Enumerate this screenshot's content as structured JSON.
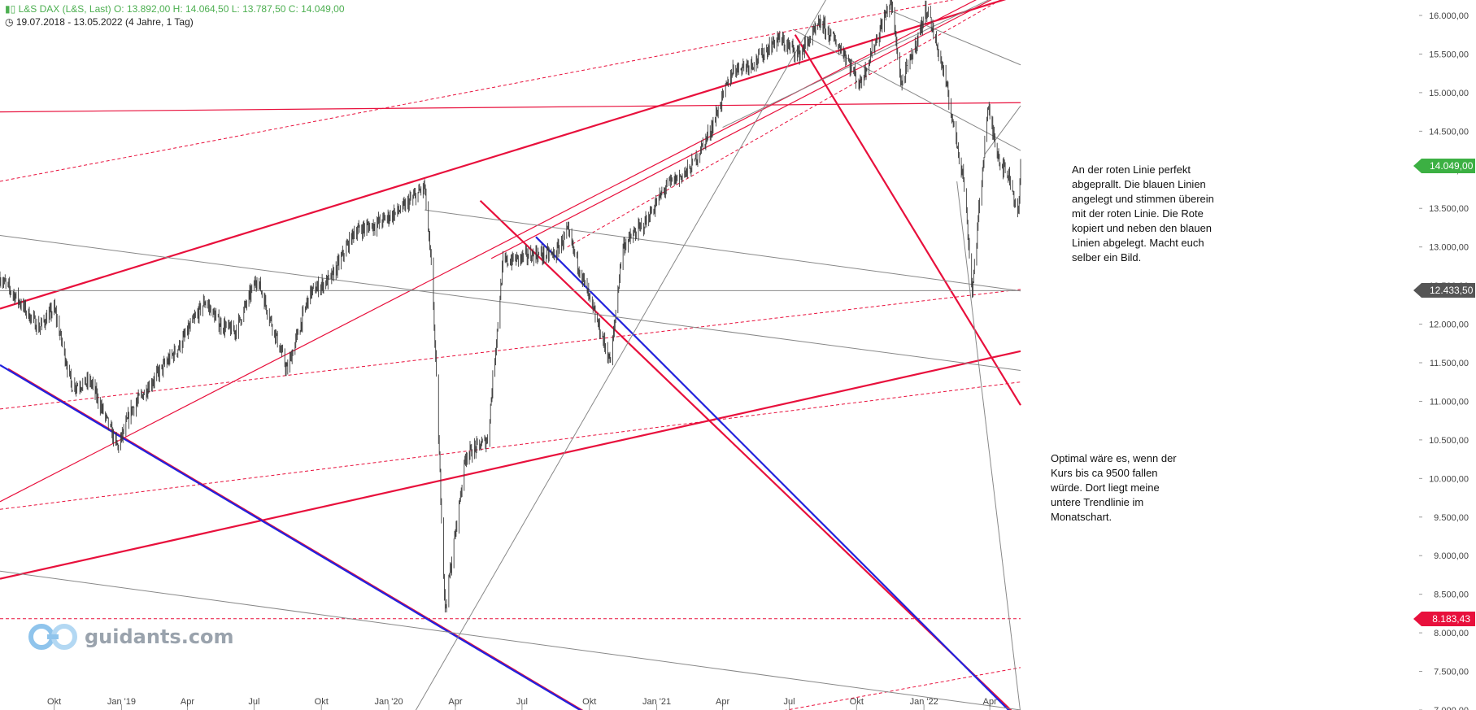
{
  "header": {
    "instrument": "L&S DAX (L&S, Last)",
    "ohlc": "O: 13.892,00   H: 14.064,50   L: 13.787,50   C: 14.049,00",
    "range": "19.07.2018 - 13.05.2022",
    "period": "(4 Jahre, 1 Tag)",
    "icons": [
      "candles-icon",
      "clock-icon"
    ]
  },
  "annotations": [
    "An der roten Linie perfekt abgeprallt. Die blauen Linien angelegt und stimmen überein mit der roten Linie. Die Rote kopiert und neben den blauen Linien abgelegt. Macht euch selber ein Bild.",
    "Optimal wäre es, wenn der Kurs bis ca 9500 fallen würde. Dort liegt meine untere Trendlinie im Monatschart."
  ],
  "logo": {
    "text": "guidants.com",
    "icon": "guidants-logo-icon"
  },
  "colors": {
    "red": "#e8103c",
    "blue": "#2222dd",
    "grey": "#888888",
    "green_badge": "#3cb043",
    "dark_badge": "#555555",
    "candle": "#3a3a3a"
  },
  "chart_data": {
    "type": "candlestick",
    "x_range": [
      "2018-07-19",
      "2022-05-13"
    ],
    "x_ticks": [
      "Okt",
      "Jan '19",
      "Apr",
      "Jul",
      "Okt",
      "Jan '20",
      "Apr",
      "Jul",
      "Okt",
      "Jan '21",
      "Apr",
      "Jul",
      "Okt",
      "Jan '22",
      "Apr"
    ],
    "x_tick_dates": [
      "2018-10-01",
      "2019-01-01",
      "2019-04-01",
      "2019-07-01",
      "2019-10-01",
      "2020-01-01",
      "2020-04-01",
      "2020-07-01",
      "2020-10-01",
      "2021-01-01",
      "2021-04-01",
      "2021-07-01",
      "2021-10-01",
      "2022-01-01",
      "2022-04-01"
    ],
    "ylim": [
      7000,
      16200
    ],
    "y_ticks": [
      "16.000,00",
      "15.500,00",
      "15.000,00",
      "14.500,00",
      "14.000,00",
      "13.500,00",
      "13.000,00",
      "12.500,00",
      "12.000,00",
      "11.500,00",
      "11.000,00",
      "10.500,00",
      "10.000,00",
      "9.500,00",
      "9.000,00",
      "8.500,00",
      "8.000,00",
      "7.500,00",
      "7.000,00"
    ],
    "y_tick_values": [
      16000,
      15500,
      15000,
      14500,
      14000,
      13500,
      13000,
      12500,
      12000,
      11500,
      11000,
      10500,
      10000,
      9500,
      9000,
      8500,
      8000,
      7500,
      7000
    ],
    "price_labels": [
      {
        "text": "14.049,00",
        "value": 14049,
        "color": "#3cb043"
      },
      {
        "text": "12.433,50",
        "value": 12433.5,
        "color": "#555555"
      },
      {
        "text": "8.183,43",
        "value": 8183.43,
        "color": "#e8103c"
      }
    ],
    "price_series": [
      [
        "2018-07-19",
        12600
      ],
      [
        "2018-08-10",
        12350
      ],
      [
        "2018-09-10",
        11950
      ],
      [
        "2018-10-01",
        12200
      ],
      [
        "2018-10-25",
        11200
      ],
      [
        "2018-11-20",
        11250
      ],
      [
        "2018-12-27",
        10400
      ],
      [
        "2019-01-15",
        10900
      ],
      [
        "2019-02-15",
        11300
      ],
      [
        "2019-03-20",
        11700
      ],
      [
        "2019-04-25",
        12300
      ],
      [
        "2019-05-15",
        12000
      ],
      [
        "2019-06-05",
        11900
      ],
      [
        "2019-07-05",
        12600
      ],
      [
        "2019-08-15",
        11400
      ],
      [
        "2019-09-15",
        12400
      ],
      [
        "2019-10-15",
        12600
      ],
      [
        "2019-11-15",
        13200
      ],
      [
        "2019-12-15",
        13300
      ],
      [
        "2020-01-20",
        13500
      ],
      [
        "2020-02-19",
        13780
      ],
      [
        "2020-03-01",
        12500
      ],
      [
        "2020-03-18",
        8300
      ],
      [
        "2020-04-15",
        10300
      ],
      [
        "2020-05-15",
        10500
      ],
      [
        "2020-06-05",
        12800
      ],
      [
        "2020-07-15",
        12900
      ],
      [
        "2020-08-15",
        12900
      ],
      [
        "2020-09-01",
        13200
      ],
      [
        "2020-09-25",
        12500
      ],
      [
        "2020-10-30",
        11500
      ],
      [
        "2020-11-15",
        13000
      ],
      [
        "2020-12-15",
        13300
      ],
      [
        "2021-01-15",
        13800
      ],
      [
        "2021-02-15",
        14000
      ],
      [
        "2021-03-15",
        14500
      ],
      [
        "2021-04-15",
        15300
      ],
      [
        "2021-05-15",
        15400
      ],
      [
        "2021-06-15",
        15700
      ],
      [
        "2021-07-15",
        15500
      ],
      [
        "2021-08-13",
        15900
      ],
      [
        "2021-09-15",
        15500
      ],
      [
        "2021-10-05",
        15100
      ],
      [
        "2021-11-17",
        16200
      ],
      [
        "2021-12-01",
        15100
      ],
      [
        "2021-12-20",
        15600
      ],
      [
        "2022-01-05",
        16100
      ],
      [
        "2022-01-27",
        15300
      ],
      [
        "2022-02-24",
        13900
      ],
      [
        "2022-03-08",
        12433.5
      ],
      [
        "2022-03-29",
        14800
      ],
      [
        "2022-04-15",
        14100
      ],
      [
        "2022-04-28",
        13900
      ],
      [
        "2022-05-10",
        13400
      ],
      [
        "2022-05-13",
        14049
      ]
    ],
    "trendlines": [
      {
        "color": "red",
        "style": "solid",
        "width": 2.2,
        "p1": [
          "2018-07-19",
          12200
        ],
        "p2": [
          "2022-05-13",
          16270
        ]
      },
      {
        "color": "red",
        "style": "solid",
        "width": 1.2,
        "p1": [
          "2018-07-19",
          14750
        ],
        "p2": [
          "2022-05-13",
          14870
        ]
      },
      {
        "color": "red",
        "style": "solid",
        "width": 1.2,
        "p1": [
          "2018-07-19",
          9700
        ],
        "p2": [
          "2022-05-13",
          16500
        ]
      },
      {
        "color": "red",
        "style": "solid",
        "width": 1.2,
        "p1": [
          "2020-05-20",
          12850
        ],
        "p2": [
          "2022-05-13",
          16400
        ]
      },
      {
        "color": "red",
        "style": "solid",
        "width": 2.2,
        "p1": [
          "2018-07-19",
          8700
        ],
        "p2": [
          "2022-05-13",
          11650
        ]
      },
      {
        "color": "red",
        "style": "dashed",
        "width": 1,
        "p1": [
          "2018-07-19",
          13850
        ],
        "p2": [
          "2022-05-13",
          16370
        ]
      },
      {
        "color": "red",
        "style": "dashed",
        "width": 1,
        "p1": [
          "2018-07-19",
          10900
        ],
        "p2": [
          "2022-05-13",
          12450
        ]
      },
      {
        "color": "red",
        "style": "dashed",
        "width": 1,
        "p1": [
          "2018-07-19",
          9600
        ],
        "p2": [
          "2022-05-13",
          11250
        ]
      },
      {
        "color": "red",
        "style": "dashed",
        "width": 1,
        "p1": [
          "2020-09-01",
          13000
        ],
        "p2": [
          "2022-05-13",
          16350
        ]
      },
      {
        "color": "red",
        "style": "dashed",
        "width": 1,
        "p1": [
          "2018-07-19",
          8183.43
        ],
        "p2": [
          "2022-05-13",
          8183.43
        ]
      },
      {
        "color": "red",
        "style": "dashed",
        "width": 1,
        "p1": [
          "2021-05-01",
          6900
        ],
        "p2": [
          "2022-05-13",
          7550
        ]
      },
      {
        "color": "red",
        "style": "solid",
        "width": 2.2,
        "p1": [
          "2021-07-09",
          15750
        ],
        "p2": [
          "2022-05-13",
          10950
        ]
      },
      {
        "color": "red",
        "style": "solid",
        "width": 2.2,
        "p1": [
          "2018-07-30",
          11420
        ],
        "p2": [
          "2020-10-08",
          6900
        ]
      },
      {
        "color": "blue",
        "style": "solid",
        "width": 2.2,
        "p1": [
          "2018-07-19",
          11470
        ],
        "p2": [
          "2020-10-06",
          6900
        ]
      },
      {
        "color": "red",
        "style": "solid",
        "width": 2.2,
        "p1": [
          "2020-05-05",
          13600
        ],
        "p2": [
          "2022-05-05",
          6950
        ]
      },
      {
        "color": "blue",
        "style": "solid",
        "width": 2.2,
        "p1": [
          "2020-07-20",
          13130
        ],
        "p2": [
          "2022-05-05",
          6920
        ]
      },
      {
        "color": "grey",
        "style": "solid",
        "width": 1,
        "p1": [
          "2018-07-19",
          13150
        ],
        "p2": [
          "2022-05-13",
          11400
        ]
      },
      {
        "color": "grey",
        "style": "solid",
        "width": 1,
        "p1": [
          "2018-07-19",
          8800
        ],
        "p2": [
          "2022-05-13",
          7000
        ]
      },
      {
        "color": "grey",
        "style": "solid",
        "width": 1,
        "p1": [
          "2020-02-19",
          13480
        ],
        "p2": [
          "2022-05-13",
          12430
        ]
      },
      {
        "color": "grey",
        "style": "solid",
        "width": 1,
        "p1": [
          "2021-11-17",
          16060
        ],
        "p2": [
          "2022-05-13",
          15360
        ]
      },
      {
        "color": "grey",
        "style": "solid",
        "width": 1,
        "p1": [
          "2021-07-06",
          15820
        ],
        "p2": [
          "2022-05-13",
          14250
        ]
      },
      {
        "color": "grey",
        "style": "solid",
        "width": 1,
        "p1": [
          "2021-04-01",
          14550
        ],
        "p2": [
          "2022-05-13",
          16400
        ]
      },
      {
        "color": "grey",
        "style": "solid",
        "width": 1,
        "p1": [
          "2020-02-01",
          6900
        ],
        "p2": [
          "2021-09-01",
          16400
        ]
      },
      {
        "color": "grey",
        "style": "solid",
        "width": 1,
        "p1": [
          "2022-03-25",
          14200
        ],
        "p2": [
          "2022-05-13",
          14830
        ]
      },
      {
        "color": "grey",
        "style": "solid",
        "width": 1,
        "p1": [
          "2022-02-15",
          13850
        ],
        "p2": [
          "2022-05-13",
          6950
        ]
      },
      {
        "color": "grey",
        "style": "solid",
        "width": 1,
        "p1": [
          "2018-07-19",
          12433.5
        ],
        "p2": [
          "2022-05-13",
          12433.5
        ]
      }
    ]
  }
}
